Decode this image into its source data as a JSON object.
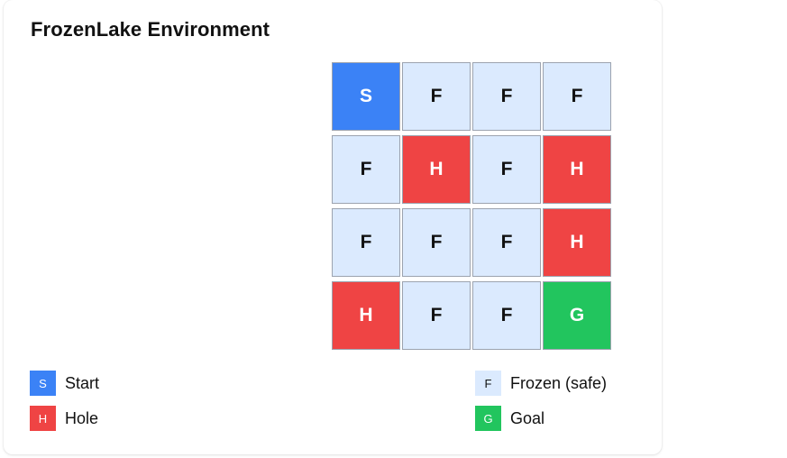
{
  "title": "FrozenLake Environment",
  "grid": [
    [
      "S",
      "F",
      "F",
      "F"
    ],
    [
      "F",
      "H",
      "F",
      "H"
    ],
    [
      "F",
      "F",
      "F",
      "H"
    ],
    [
      "H",
      "F",
      "F",
      "G"
    ]
  ],
  "legend": [
    {
      "symbol": "S",
      "label": "Start",
      "color": "#3b82f6"
    },
    {
      "symbol": "H",
      "label": "Hole",
      "color": "#ef4444"
    },
    {
      "symbol": "F",
      "label": "Frozen (safe)",
      "color": "#dbeafe"
    },
    {
      "symbol": "G",
      "label": "Goal",
      "color": "#22c55e"
    }
  ]
}
